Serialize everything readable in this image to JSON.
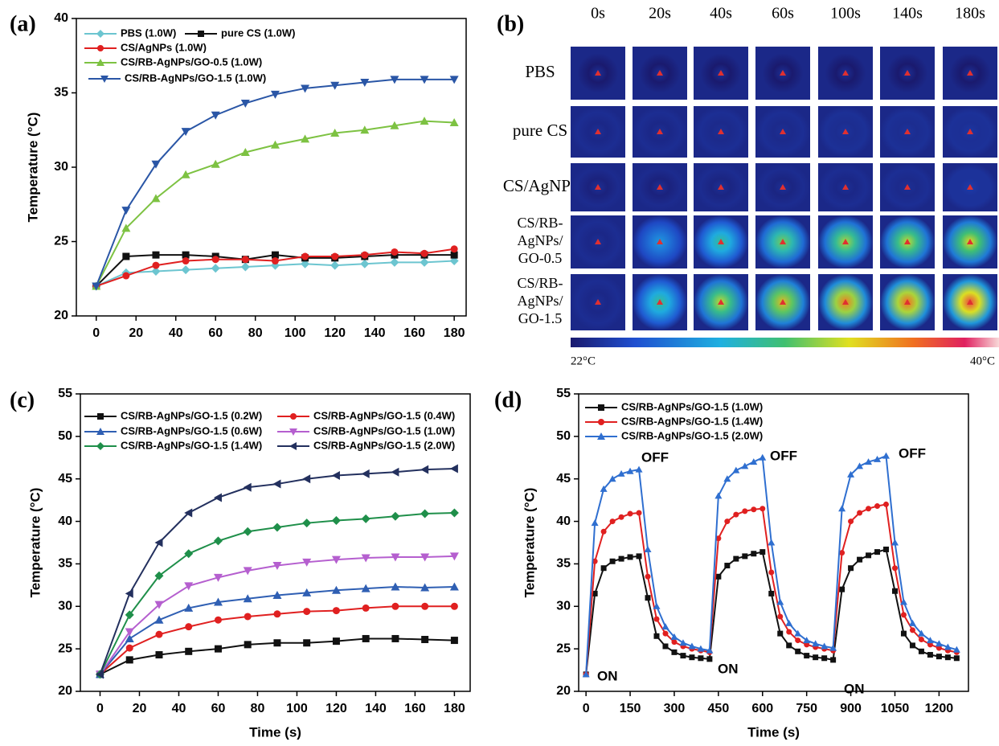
{
  "chart_data": [
    {
      "type": "line",
      "panel_label": "(a)",
      "y_label": "Temperature (°C)",
      "x": [
        0,
        15,
        30,
        45,
        60,
        75,
        90,
        105,
        120,
        135,
        150,
        165,
        180
      ],
      "xlim": [
        -10,
        186
      ],
      "ylim": [
        20,
        40
      ],
      "xticks": [
        0,
        20,
        40,
        60,
        80,
        100,
        120,
        140,
        160,
        180
      ],
      "yticks": [
        20,
        25,
        30,
        35,
        40
      ],
      "series": [
        {
          "name": "PBS (1.0W)",
          "color": "#6cc5d0",
          "marker": "diamond",
          "values": [
            22,
            22.9,
            23,
            23.1,
            23.2,
            23.3,
            23.4,
            23.5,
            23.4,
            23.5,
            23.6,
            23.6,
            23.7
          ]
        },
        {
          "name": "pure CS (1.0W)",
          "color": "#111111",
          "marker": "square",
          "values": [
            22,
            24,
            24.1,
            24.1,
            24,
            23.8,
            24.1,
            23.9,
            23.9,
            24,
            24.1,
            24.1,
            24.1
          ]
        },
        {
          "name": "CS/AgNPs  (1.0W)",
          "color": "#e02020",
          "marker": "circle",
          "values": [
            22,
            22.7,
            23.4,
            23.7,
            23.8,
            23.8,
            23.7,
            24,
            24,
            24.1,
            24.3,
            24.2,
            24.5
          ]
        },
        {
          "name": "CS/RB-AgNPs/GO-0.5 (1.0W)",
          "color": "#7dc242",
          "marker": "triangle-up",
          "values": [
            22,
            25.9,
            27.9,
            29.5,
            30.2,
            31,
            31.5,
            31.9,
            32.3,
            32.5,
            32.8,
            33.1,
            33
          ]
        },
        {
          "name": "CS/RB-AgNPs/GO-1.5 (1.0W)",
          "color": "#2a56a6",
          "marker": "triangle-down",
          "values": [
            22,
            27.1,
            30.2,
            32.4,
            33.5,
            34.3,
            34.9,
            35.3,
            35.5,
            35.7,
            35.9,
            35.9,
            35.9
          ]
        }
      ]
    },
    {
      "type": "line",
      "panel_label": "(c)",
      "x_label": "Time (s)",
      "y_label": "Temperature (°C)",
      "x": [
        0,
        15,
        30,
        45,
        60,
        75,
        90,
        105,
        120,
        135,
        150,
        165,
        180
      ],
      "xlim": [
        -10,
        188
      ],
      "ylim": [
        20,
        55
      ],
      "xticks": [
        0,
        20,
        40,
        60,
        80,
        100,
        120,
        140,
        160,
        180
      ],
      "yticks": [
        20,
        25,
        30,
        35,
        40,
        45,
        50,
        55
      ],
      "series": [
        {
          "name": "CS/RB-AgNPs/GO-1.5 (0.2W)",
          "color": "#111111",
          "marker": "square",
          "values": [
            22,
            23.7,
            24.3,
            24.7,
            25,
            25.5,
            25.7,
            25.7,
            25.9,
            26.2,
            26.2,
            26.1,
            26
          ]
        },
        {
          "name": "CS/RB-AgNPs/GO-1.5 (0.4W)",
          "color": "#e02020",
          "marker": "circle",
          "values": [
            22,
            25.1,
            26.7,
            27.6,
            28.4,
            28.8,
            29.1,
            29.4,
            29.5,
            29.8,
            30,
            30,
            30
          ]
        },
        {
          "name": "CS/RB-AgNPs/GO-1.5 (0.6W)",
          "color": "#2f5fb3",
          "marker": "triangle-up",
          "values": [
            22,
            26.2,
            28.4,
            29.8,
            30.5,
            30.9,
            31.3,
            31.6,
            31.9,
            32.1,
            32.3,
            32.2,
            32.3
          ]
        },
        {
          "name": "CS/RB-AgNPs/GO-1.5 (1.0W)",
          "color": "#b55fcf",
          "marker": "triangle-down",
          "values": [
            22,
            27,
            30.2,
            32.4,
            33.4,
            34.2,
            34.8,
            35.2,
            35.5,
            35.7,
            35.8,
            35.8,
            35.9
          ]
        },
        {
          "name": "CS/RB-AgNPs/GO-1.5 (1.4W)",
          "color": "#1f8f4a",
          "marker": "diamond",
          "values": [
            22,
            29,
            33.6,
            36.2,
            37.7,
            38.8,
            39.3,
            39.8,
            40.1,
            40.3,
            40.6,
            40.9,
            41
          ]
        },
        {
          "name": "CS/RB-AgNPs/GO-1.5 (2.0W)",
          "color": "#23305e",
          "marker": "triangle-left",
          "values": [
            22,
            31.5,
            37.5,
            41,
            42.8,
            44,
            44.4,
            45,
            45.4,
            45.6,
            45.8,
            46.1,
            46.2
          ]
        }
      ]
    },
    {
      "type": "line",
      "panel_label": "(d)",
      "x_label": "Time (s)",
      "y_label": "Temperature (°C)",
      "x": [
        0,
        30,
        60,
        90,
        120,
        150,
        180,
        210,
        240,
        270,
        300,
        330,
        360,
        390,
        420,
        450,
        480,
        510,
        540,
        570,
        600,
        630,
        660,
        690,
        720,
        750,
        780,
        810,
        840,
        870,
        900,
        930,
        960,
        990,
        1020,
        1050,
        1080,
        1110,
        1140,
        1170,
        1200,
        1230,
        1260
      ],
      "xlim": [
        -25,
        1300
      ],
      "ylim": [
        20,
        55
      ],
      "xticks": [
        0,
        150,
        300,
        450,
        600,
        750,
        900,
        1050,
        1200
      ],
      "yticks": [
        20,
        25,
        30,
        35,
        40,
        45,
        50,
        55
      ],
      "annotations": [
        "ON",
        "ON",
        "ON",
        "OFF",
        "OFF",
        "OFF"
      ],
      "series": [
        {
          "name": "CS/RB-AgNPs/GO-1.5 (1.0W)",
          "color": "#111111",
          "marker": "square",
          "values": [
            22,
            31.5,
            34.5,
            35.3,
            35.6,
            35.8,
            35.9,
            31,
            26.5,
            25.3,
            24.6,
            24.2,
            24,
            23.9,
            23.8,
            33.5,
            34.8,
            35.6,
            35.9,
            36.2,
            36.4,
            31.5,
            26.8,
            25.4,
            24.7,
            24.2,
            24,
            23.9,
            23.7,
            32,
            34.5,
            35.5,
            36,
            36.4,
            36.7,
            31.8,
            26.8,
            25.4,
            24.7,
            24.3,
            24.1,
            24,
            23.9
          ]
        },
        {
          "name": "CS/RB-AgNPs/GO-1.5 (1.4W)",
          "color": "#e02020",
          "marker": "circle",
          "values": [
            22,
            35.3,
            38.8,
            40,
            40.5,
            40.9,
            41,
            33.5,
            28.5,
            26.8,
            25.8,
            25.3,
            25,
            24.8,
            24.6,
            38,
            40,
            40.8,
            41.2,
            41.4,
            41.5,
            34,
            28.8,
            27,
            26,
            25.5,
            25.2,
            25,
            24.8,
            36.3,
            40,
            41,
            41.5,
            41.8,
            42,
            34.5,
            29,
            27.2,
            26.1,
            25.5,
            25.1,
            24.8,
            24.6
          ]
        },
        {
          "name": "CS/RB-AgNPs/GO-1.5 (2.0W)",
          "color": "#2f6fd0",
          "marker": "triangle-up",
          "values": [
            22,
            39.8,
            43.8,
            45,
            45.6,
            45.9,
            46.1,
            36.7,
            30,
            27.6,
            26.4,
            25.7,
            25.3,
            25,
            24.8,
            43,
            45,
            46,
            46.5,
            47,
            47.5,
            37.5,
            30.5,
            28,
            26.8,
            26,
            25.6,
            25.3,
            25.1,
            41.5,
            45.5,
            46.5,
            47,
            47.3,
            47.7,
            37.5,
            30.5,
            28,
            26.8,
            26,
            25.6,
            25.2,
            24.9
          ]
        }
      ]
    }
  ],
  "thermal_images": {
    "panel_label": "(b)",
    "times": [
      "0s",
      "20s",
      "40s",
      "60s",
      "100s",
      "140s",
      "180s"
    ],
    "rows": [
      [
        "PBS"
      ],
      [
        "pure CS"
      ],
      [
        "CS/AgNPs"
      ],
      [
        "CS/RB-",
        "AgNPs/",
        "GO-0.5"
      ],
      [
        "CS/RB-",
        "AgNPs/",
        "GO-1.5"
      ]
    ],
    "scale_min": "22°C",
    "scale_max": "40°C"
  }
}
